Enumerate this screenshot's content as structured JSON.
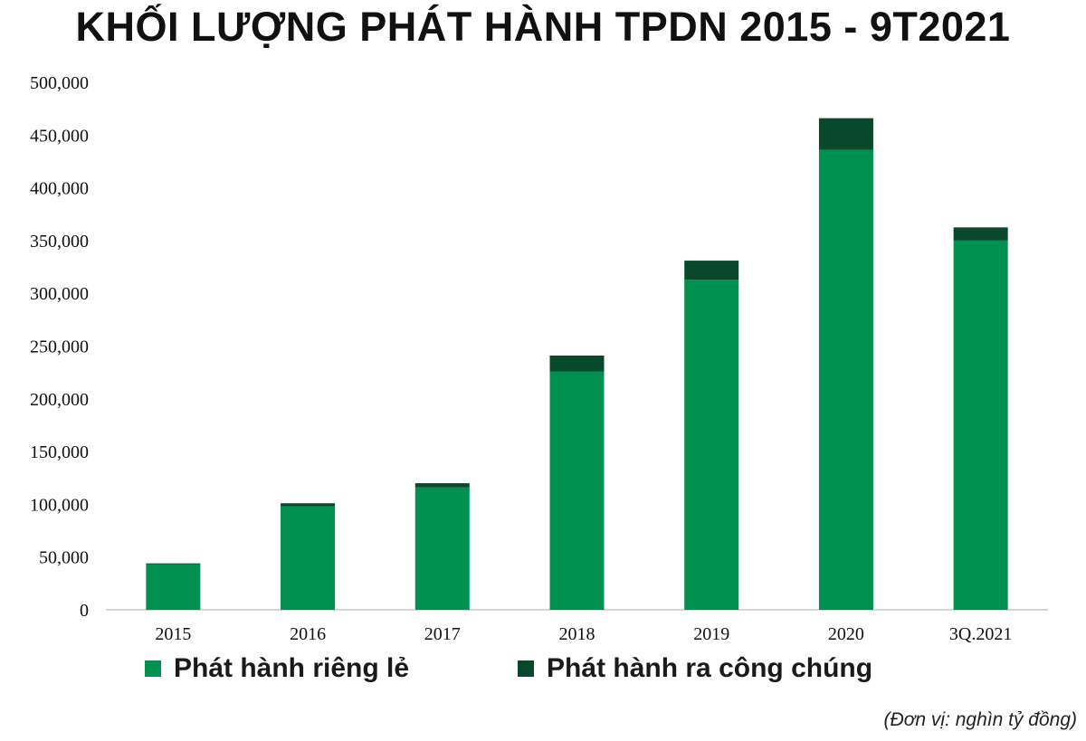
{
  "chart_data": {
    "type": "bar",
    "stacked": true,
    "title": "KHỐI LƯỢNG PHÁT HÀNH TPDN 2015 - 9T2021",
    "categories": [
      "2015",
      "2016",
      "2017",
      "2018",
      "2019",
      "2020",
      "3Q.2021"
    ],
    "series": [
      {
        "name": "Phát hành riêng lẻ",
        "color": "#009050",
        "values": [
          43000,
          98000,
          116000,
          226000,
          313000,
          436000,
          350000
        ]
      },
      {
        "name": "Phát hành ra công chúng",
        "color": "#08482C",
        "values": [
          1000,
          3000,
          4000,
          15000,
          18000,
          30000,
          12500
        ]
      }
    ],
    "ylim": [
      0,
      500000
    ],
    "yticks": [
      "0",
      "50,000",
      "100,000",
      "150,000",
      "200,000",
      "250,000",
      "300,000",
      "350,000",
      "400,000",
      "450,000",
      "500,000"
    ],
    "grid": false,
    "legend_position": "bottom-left",
    "unit_note": "(Đơn vị: nghìn tỷ đồng)"
  }
}
